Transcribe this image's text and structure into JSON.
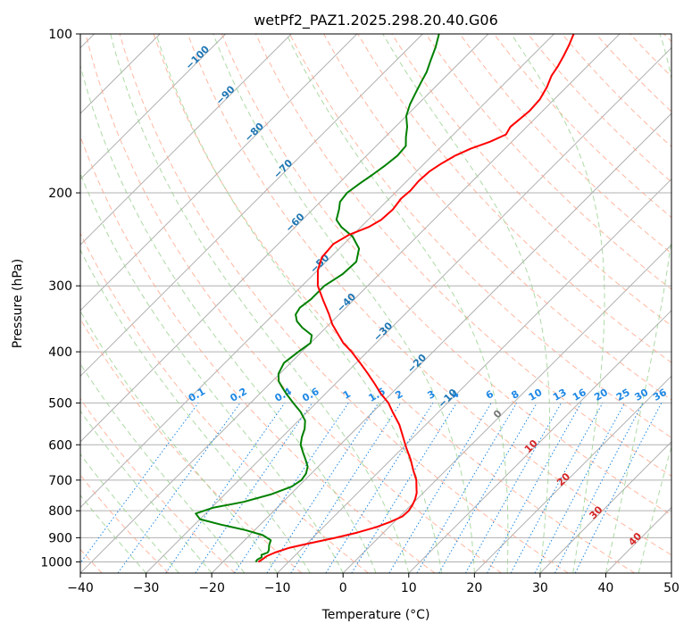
{
  "chart_data": {
    "type": "skewt",
    "title": "wetPf2_PAZ1.2025.298.20.40.G06",
    "xlabel": "Temperature (°C)",
    "ylabel": "Pressure (hPa)",
    "xlim": [
      -40,
      50
    ],
    "ylim": [
      1050,
      100
    ],
    "x_ticks": [
      -40,
      -30,
      -20,
      -10,
      0,
      10,
      20,
      30,
      40,
      50
    ],
    "x_tick_labels": [
      "−40",
      "−30",
      "−20",
      "−10",
      "0",
      "10",
      "20",
      "30",
      "40",
      "50"
    ],
    "y_ticks": [
      100,
      200,
      300,
      400,
      500,
      600,
      700,
      800,
      900,
      1000
    ],
    "y_tick_labels": [
      "100",
      "200",
      "300",
      "400",
      "500",
      "600",
      "700",
      "800",
      "900",
      "1000"
    ],
    "temperature_profile": {
      "name": "Temperature",
      "color": "#ff0000",
      "p": [
        1000,
        990,
        975,
        960,
        940,
        925,
        900,
        880,
        860,
        840,
        820,
        800,
        780,
        760,
        740,
        720,
        700,
        670,
        640,
        610,
        580,
        550,
        520,
        500,
        480,
        460,
        440,
        420,
        400,
        385,
        370,
        355,
        340,
        320,
        300,
        280,
        265,
        250,
        240,
        232,
        225,
        215,
        205,
        198,
        190,
        182,
        176,
        170,
        165,
        160,
        155,
        150,
        140,
        133,
        126,
        120,
        115,
        110,
        105,
        100
      ],
      "t": [
        -14.6,
        -14.4,
        -14.2,
        -13.5,
        -12.0,
        -10.0,
        -6.5,
        -4.0,
        -2.0,
        -0.6,
        0.4,
        0.5,
        0.2,
        -0.3,
        -1.0,
        -2.0,
        -3.0,
        -5.0,
        -7.0,
        -9.3,
        -11.6,
        -14.0,
        -17.0,
        -19.0,
        -21.6,
        -24.0,
        -26.6,
        -29.4,
        -32.4,
        -35.0,
        -37.2,
        -39.5,
        -41.5,
        -44.5,
        -47.6,
        -50.0,
        -51.3,
        -51.6,
        -50.6,
        -48.8,
        -48.0,
        -47.8,
        -48.2,
        -48.0,
        -48.2,
        -48.0,
        -47.4,
        -46.5,
        -45.2,
        -43.3,
        -42.0,
        -42.5,
        -42.0,
        -42.2,
        -43.0,
        -44.0,
        -44.5,
        -45.2,
        -46.0,
        -47.0
      ]
    },
    "dewpoint_profile": {
      "name": "Dewpoint",
      "color": "#008000",
      "p": [
        1000,
        990,
        980,
        970,
        960,
        950,
        930,
        910,
        890,
        870,
        850,
        830,
        810,
        790,
        770,
        745,
        720,
        700,
        680,
        660,
        640,
        620,
        600,
        580,
        560,
        540,
        520,
        500,
        480,
        465,
        455,
        440,
        420,
        400,
        385,
        372,
        360,
        350,
        340,
        330,
        318,
        300,
        285,
        270,
        255,
        242,
        232,
        225,
        215,
        208,
        200,
        192,
        185,
        178,
        170,
        163,
        157,
        150,
        143,
        136,
        130,
        124,
        118,
        112,
        106,
        100
      ],
      "t": [
        -15.0,
        -15.1,
        -14.8,
        -15.2,
        -14.6,
        -14.8,
        -15.5,
        -16.0,
        -18.0,
        -21.5,
        -26.0,
        -30.0,
        -31.5,
        -29.8,
        -26.0,
        -23.0,
        -21.0,
        -20.5,
        -20.8,
        -21.6,
        -23.0,
        -24.5,
        -26.0,
        -27.0,
        -27.8,
        -29.0,
        -31.0,
        -33.5,
        -36.0,
        -37.8,
        -39.0,
        -40.2,
        -41.0,
        -40.5,
        -40.0,
        -41.0,
        -43.6,
        -45.4,
        -46.6,
        -47.0,
        -46.6,
        -46.6,
        -45.6,
        -45.4,
        -47.0,
        -49.8,
        -53.0,
        -54.8,
        -56.0,
        -57.0,
        -57.3,
        -56.8,
        -56.2,
        -55.7,
        -55.3,
        -55.5,
        -56.8,
        -58.2,
        -60.0,
        -61.2,
        -62.0,
        -62.8,
        -63.6,
        -64.8,
        -66.0,
        -67.5
      ]
    },
    "isotherm_labels": [
      "−100",
      "−90",
      "−80",
      "−70",
      "−60",
      "−50",
      "−40",
      "−30",
      "−20",
      "−10",
      "0",
      "10",
      "20",
      "30",
      "40"
    ],
    "mixing_ratio_labels": [
      "0.1",
      "0.2",
      "0.4",
      "0.6",
      "1",
      "1.5",
      "2",
      "3",
      "4",
      "6",
      "8",
      "10",
      "13",
      "16",
      "20",
      "25",
      "30",
      "36"
    ],
    "grid": true,
    "colors": {
      "temperature": "#ff0000",
      "dewpoint": "#008000",
      "isotherm_grid": "#b0b0b0",
      "dry_adiabat": "#ff9f80",
      "moist_adiabat": "#99d18f",
      "mixing_ratio": "#1e88e5",
      "cold_label": "#1f77b4",
      "warm_label": "#d62728",
      "zero_label": "#777777"
    }
  }
}
